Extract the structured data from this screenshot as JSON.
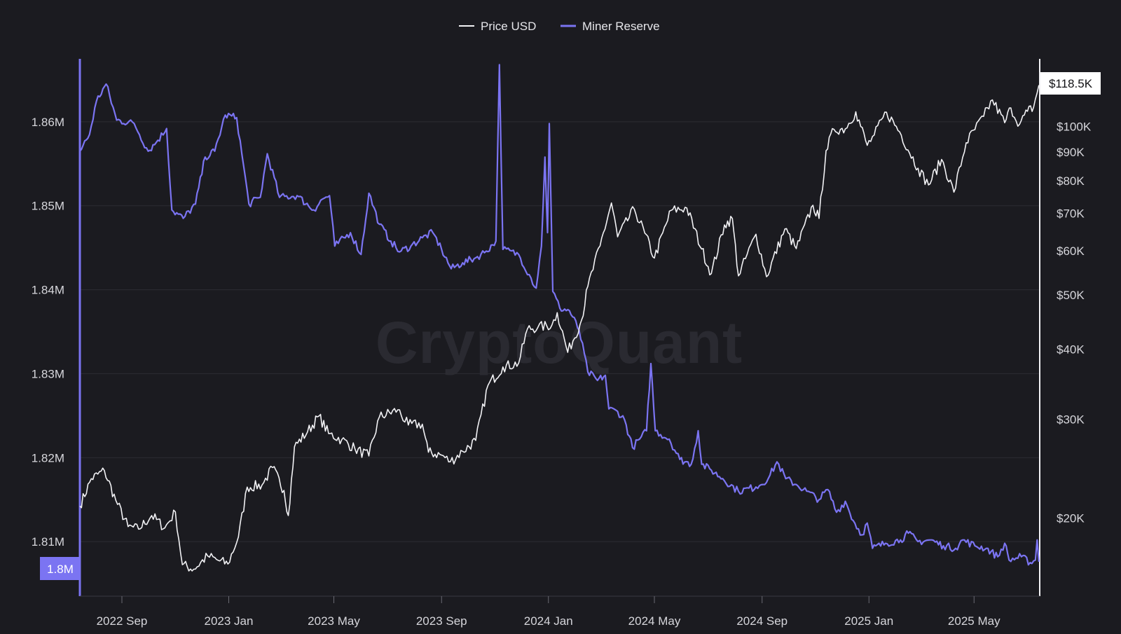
{
  "watermark": "CryptoQuant",
  "colors": {
    "background": "#1b1b20",
    "price": "#f2f2f5",
    "reserve": "#7b74f2",
    "grid": "#2c2c33",
    "axis_text": "#d6d6db"
  },
  "legend": {
    "price_label": "Price USD",
    "reserve_label": "Miner Reserve"
  },
  "badges": {
    "price_current": "$118.5K",
    "reserve_current": "1.8M"
  },
  "chart_data": {
    "type": "line",
    "title": "",
    "legend_position": "top-center",
    "grid": true,
    "x_ticks": [
      "2022 Sep",
      "2023 Jan",
      "2023 May",
      "2023 Sep",
      "2024 Jan",
      "2024 May",
      "2024 Sep",
      "2025 Jan",
      "2025 May"
    ],
    "x_tick_dates": [
      "2022-09-01",
      "2023-01-01",
      "2023-05-01",
      "2023-09-01",
      "2024-01-01",
      "2024-05-01",
      "2024-09-01",
      "2025-01-01",
      "2025-05-01"
    ],
    "x_range": [
      "2022-07-15",
      "2025-07-15"
    ],
    "left_axis": {
      "series": "Miner Reserve",
      "range": [
        1.8035,
        1.8675
      ],
      "tick_values": [
        1.81,
        1.82,
        1.83,
        1.84,
        1.85,
        1.86
      ],
      "tick_labels": [
        "1.81M",
        "1.82M",
        "1.83M",
        "1.84M",
        "1.85M",
        "1.86M"
      ],
      "unit": "M BTC"
    },
    "right_axis": {
      "series": "Price USD",
      "scale": "log",
      "range": [
        14500,
        132000
      ],
      "tick_values": [
        20000,
        30000,
        40000,
        50000,
        60000,
        70000,
        80000,
        90000,
        100000
      ],
      "tick_labels": [
        "$20K",
        "$30K",
        "$40K",
        "$50K",
        "$60K",
        "$70K",
        "$80K",
        "$90K",
        "$100K"
      ]
    },
    "series": [
      {
        "name": "Price USD",
        "axis": "right",
        "points": [
          [
            "2022-07-15",
            21000
          ],
          [
            "2022-07-28",
            23500
          ],
          [
            "2022-08-12",
            24300
          ],
          [
            "2022-08-25",
            21500
          ],
          [
            "2022-09-08",
            19300
          ],
          [
            "2022-09-20",
            19100
          ],
          [
            "2022-10-05",
            20200
          ],
          [
            "2022-10-20",
            19200
          ],
          [
            "2022-11-01",
            20500
          ],
          [
            "2022-11-09",
            16500
          ],
          [
            "2022-11-22",
            16200
          ],
          [
            "2022-12-08",
            17100
          ],
          [
            "2022-12-20",
            16800
          ],
          [
            "2022-12-31",
            16550
          ],
          [
            "2023-01-12",
            18500
          ],
          [
            "2023-01-22",
            22700
          ],
          [
            "2023-02-08",
            22900
          ],
          [
            "2023-02-20",
            24600
          ],
          [
            "2023-03-05",
            22400
          ],
          [
            "2023-03-10",
            20200
          ],
          [
            "2023-03-17",
            26800
          ],
          [
            "2023-04-01",
            28500
          ],
          [
            "2023-04-14",
            30400
          ],
          [
            "2023-04-25",
            28300
          ],
          [
            "2023-05-10",
            27600
          ],
          [
            "2023-05-25",
            26600
          ],
          [
            "2023-06-10",
            25800
          ],
          [
            "2023-06-22",
            30300
          ],
          [
            "2023-07-13",
            31200
          ],
          [
            "2023-07-25",
            29300
          ],
          [
            "2023-08-10",
            29400
          ],
          [
            "2023-08-17",
            26200
          ],
          [
            "2023-09-01",
            25900
          ],
          [
            "2023-09-11",
            25200
          ],
          [
            "2023-09-25",
            26300
          ],
          [
            "2023-10-10",
            27500
          ],
          [
            "2023-10-24",
            34500
          ],
          [
            "2023-11-10",
            37200
          ],
          [
            "2023-11-28",
            37800
          ],
          [
            "2023-12-08",
            43500
          ],
          [
            "2023-12-20",
            43800
          ],
          [
            "2024-01-05",
            44200
          ],
          [
            "2024-01-11",
            46500
          ],
          [
            "2024-01-23",
            39500
          ],
          [
            "2024-02-08",
            45200
          ],
          [
            "2024-02-15",
            51800
          ],
          [
            "2024-02-29",
            61200
          ],
          [
            "2024-03-13",
            73000
          ],
          [
            "2024-03-20",
            63500
          ],
          [
            "2024-04-08",
            71200
          ],
          [
            "2024-04-20",
            64500
          ],
          [
            "2024-05-01",
            58200
          ],
          [
            "2024-05-20",
            70800
          ],
          [
            "2024-06-07",
            71500
          ],
          [
            "2024-06-24",
            60400
          ],
          [
            "2024-07-05",
            54600
          ],
          [
            "2024-07-20",
            66700
          ],
          [
            "2024-07-29",
            68500
          ],
          [
            "2024-08-05",
            54100
          ],
          [
            "2024-08-25",
            64200
          ],
          [
            "2024-09-06",
            53900
          ],
          [
            "2024-09-27",
            65600
          ],
          [
            "2024-10-10",
            60500
          ],
          [
            "2024-10-29",
            72300
          ],
          [
            "2024-11-05",
            68500
          ],
          [
            "2024-11-13",
            90500
          ],
          [
            "2024-11-22",
            98800
          ],
          [
            "2024-12-05",
            99000
          ],
          [
            "2024-12-17",
            106200
          ],
          [
            "2024-12-30",
            92500
          ],
          [
            "2025-01-07",
            96500
          ],
          [
            "2025-01-21",
            106000
          ],
          [
            "2025-02-05",
            97800
          ],
          [
            "2025-02-26",
            84200
          ],
          [
            "2025-03-10",
            78600
          ],
          [
            "2025-03-25",
            87300
          ],
          [
            "2025-04-08",
            76300
          ],
          [
            "2025-04-22",
            93500
          ],
          [
            "2025-05-12",
            104200
          ],
          [
            "2025-05-22",
            111500
          ],
          [
            "2025-06-05",
            101500
          ],
          [
            "2025-06-12",
            107900
          ],
          [
            "2025-06-22",
            100900
          ],
          [
            "2025-07-01",
            106400
          ],
          [
            "2025-07-08",
            108200
          ],
          [
            "2025-07-14",
            118500
          ]
        ]
      },
      {
        "name": "Miner Reserve",
        "axis": "left",
        "points": [
          [
            "2022-07-15",
            1.8565
          ],
          [
            "2022-07-26",
            1.8585
          ],
          [
            "2022-08-03",
            1.8625
          ],
          [
            "2022-08-14",
            1.8645
          ],
          [
            "2022-08-26",
            1.8602
          ],
          [
            "2022-09-15",
            1.8598
          ],
          [
            "2022-10-01",
            1.8565
          ],
          [
            "2022-10-12",
            1.8578
          ],
          [
            "2022-10-22",
            1.8592
          ],
          [
            "2022-10-28",
            1.8495
          ],
          [
            "2022-11-10",
            1.8485
          ],
          [
            "2022-11-24",
            1.8502
          ],
          [
            "2022-12-05",
            1.8558
          ],
          [
            "2022-12-16",
            1.8565
          ],
          [
            "2022-12-28",
            1.8608
          ],
          [
            "2023-01-10",
            1.8605
          ],
          [
            "2023-01-24",
            1.8502
          ],
          [
            "2023-02-06",
            1.851
          ],
          [
            "2023-02-14",
            1.8562
          ],
          [
            "2023-02-28",
            1.851
          ],
          [
            "2023-03-20",
            1.8512
          ],
          [
            "2023-04-08",
            1.8495
          ],
          [
            "2023-04-18",
            1.8508
          ],
          [
            "2023-04-26",
            1.8512
          ],
          [
            "2023-05-02",
            1.8452
          ],
          [
            "2023-05-20",
            1.8468
          ],
          [
            "2023-06-01",
            1.8442
          ],
          [
            "2023-06-10",
            1.8515
          ],
          [
            "2023-06-22",
            1.8478
          ],
          [
            "2023-07-05",
            1.8458
          ],
          [
            "2023-07-15",
            1.8445
          ],
          [
            "2023-07-28",
            1.8452
          ],
          [
            "2023-08-10",
            1.8462
          ],
          [
            "2023-08-22",
            1.8468
          ],
          [
            "2023-09-01",
            1.8448
          ],
          [
            "2023-09-12",
            1.8425
          ],
          [
            "2023-09-25",
            1.8432
          ],
          [
            "2023-10-10",
            1.8438
          ],
          [
            "2023-10-22",
            1.8446
          ],
          [
            "2023-11-02",
            1.8458
          ],
          [
            "2023-11-06",
            1.8668
          ],
          [
            "2023-11-10",
            1.8448
          ],
          [
            "2023-11-28",
            1.8442
          ],
          [
            "2023-12-10",
            1.8418
          ],
          [
            "2023-12-18",
            1.8402
          ],
          [
            "2023-12-24",
            1.8452
          ],
          [
            "2023-12-28",
            1.8558
          ],
          [
            "2023-12-31",
            1.8468
          ],
          [
            "2024-01-02",
            1.8598
          ],
          [
            "2024-01-06",
            1.8398
          ],
          [
            "2024-01-14",
            1.8378
          ],
          [
            "2024-01-25",
            1.8375
          ],
          [
            "2024-02-05",
            1.8352
          ],
          [
            "2024-02-15",
            1.8302
          ],
          [
            "2024-02-26",
            1.8292
          ],
          [
            "2024-03-06",
            1.8298
          ],
          [
            "2024-03-10",
            1.8258
          ],
          [
            "2024-03-20",
            1.8255
          ],
          [
            "2024-03-28",
            1.8245
          ],
          [
            "2024-04-06",
            1.8212
          ],
          [
            "2024-04-14",
            1.8222
          ],
          [
            "2024-04-22",
            1.8232
          ],
          [
            "2024-04-27",
            1.8312
          ],
          [
            "2024-05-02",
            1.8232
          ],
          [
            "2024-05-18",
            1.8222
          ],
          [
            "2024-05-30",
            1.8198
          ],
          [
            "2024-06-12",
            1.8192
          ],
          [
            "2024-06-20",
            1.8232
          ],
          [
            "2024-06-24",
            1.8192
          ],
          [
            "2024-07-05",
            1.8185
          ],
          [
            "2024-07-18",
            1.8175
          ],
          [
            "2024-08-05",
            1.816
          ],
          [
            "2024-08-25",
            1.8165
          ],
          [
            "2024-09-08",
            1.8175
          ],
          [
            "2024-09-18",
            1.8195
          ],
          [
            "2024-09-28",
            1.8175
          ],
          [
            "2024-10-10",
            1.8168
          ],
          [
            "2024-10-22",
            1.816
          ],
          [
            "2024-11-05",
            1.815
          ],
          [
            "2024-11-15",
            1.8162
          ],
          [
            "2024-11-25",
            1.8135
          ],
          [
            "2024-12-05",
            1.8148
          ],
          [
            "2024-12-14",
            1.8125
          ],
          [
            "2024-12-24",
            1.8108
          ],
          [
            "2024-12-30",
            1.8122
          ],
          [
            "2025-01-05",
            1.8092
          ],
          [
            "2025-01-20",
            1.8098
          ],
          [
            "2025-02-06",
            1.8102
          ],
          [
            "2025-02-15",
            1.811
          ],
          [
            "2025-02-26",
            1.81
          ],
          [
            "2025-03-12",
            1.8102
          ],
          [
            "2025-03-27",
            1.8095
          ],
          [
            "2025-04-10",
            1.8092
          ],
          [
            "2025-04-18",
            1.8102
          ],
          [
            "2025-05-02",
            1.8095
          ],
          [
            "2025-05-15",
            1.8092
          ],
          [
            "2025-05-28",
            1.8082
          ],
          [
            "2025-06-05",
            1.8098
          ],
          [
            "2025-06-10",
            1.8078
          ],
          [
            "2025-06-24",
            1.8082
          ],
          [
            "2025-07-04",
            1.8075
          ],
          [
            "2025-07-10",
            1.8078
          ],
          [
            "2025-07-12",
            1.8102
          ],
          [
            "2025-07-14",
            1.8076
          ]
        ]
      }
    ]
  }
}
